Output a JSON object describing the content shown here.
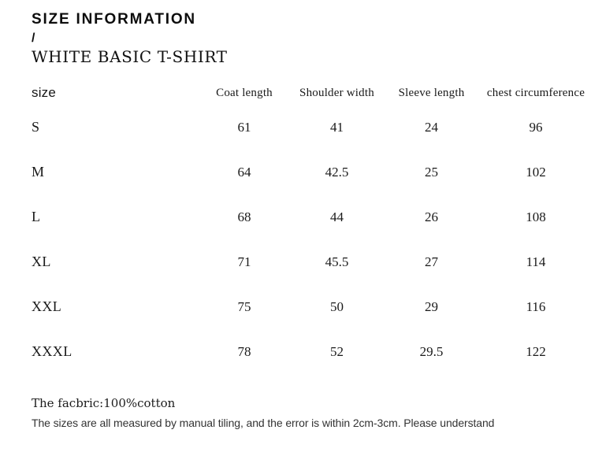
{
  "header": {
    "title": "SIZE INFORMATION",
    "separator": "/",
    "product_name": "WHITE BASIC T-SHIRT"
  },
  "size_table": {
    "columns": [
      "size",
      "Coat length",
      "Shoulder width",
      "Sleeve length",
      "chest circumference"
    ],
    "rows": [
      {
        "label": "S",
        "cells": [
          "61",
          "41",
          "24",
          "96"
        ]
      },
      {
        "label": "M",
        "cells": [
          "64",
          "42.5",
          "25",
          "102"
        ]
      },
      {
        "label": "L",
        "cells": [
          "68",
          "44",
          "26",
          "108"
        ]
      },
      {
        "label": "XL",
        "cells": [
          "71",
          "45.5",
          "27",
          "114"
        ]
      },
      {
        "label": "XXL",
        "cells": [
          "75",
          "50",
          "29",
          "116"
        ]
      },
      {
        "label": "XXXL",
        "cells": [
          "78",
          "52",
          "29.5",
          "122"
        ]
      }
    ]
  },
  "notes": {
    "fabric": "The facbric:100%cotton",
    "disclaimer": "The sizes are all measured by manual tiling, and the error is within 2cm-3cm. Please understand"
  },
  "colors": {
    "background": "#ffffff",
    "text": "#141414",
    "note_text": "#333333"
  }
}
